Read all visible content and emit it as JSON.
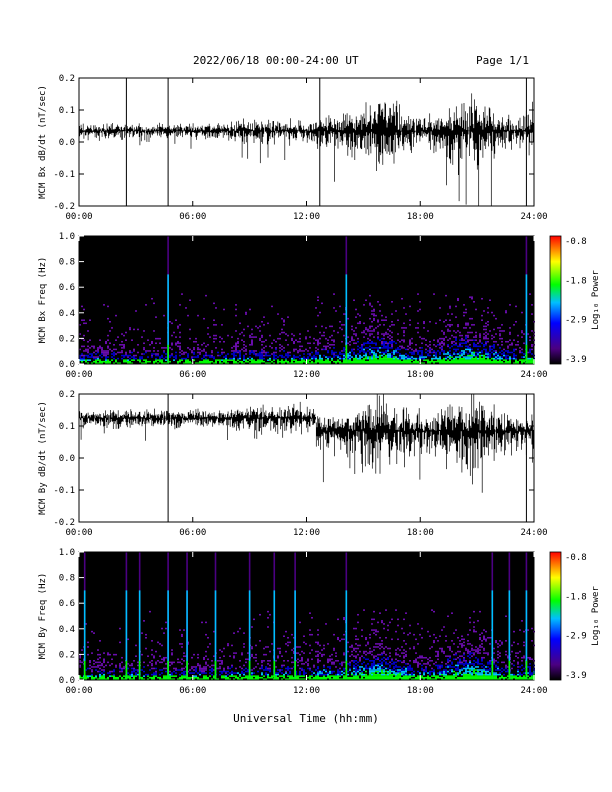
{
  "header": {
    "title": "2022/06/18  00:00-24:00 UT",
    "page": "Page 1/1"
  },
  "xaxis_label": "Universal Time (hh:mm)",
  "colorbar": {
    "label": "Log₁₀ Power",
    "ticks": [
      "-0.8",
      "-1.8",
      "-2.9",
      "-3.9"
    ]
  },
  "colors": {
    "spectrogram_background": "#000000",
    "low_power": "#4b0082",
    "mid_power": "#00bfff",
    "high_power": "#00ff00",
    "max_power": "#ff0000"
  },
  "chart_data": [
    {
      "type": "line",
      "ylabel": "MCM Bx dB/dt (nT/sec)",
      "ylim": [
        -0.2,
        0.2
      ],
      "yticks": [
        "0.2",
        "0.1",
        "0.0",
        "-0.1",
        "-0.2"
      ],
      "xticks": [
        "00:00",
        "06:00",
        "12:00",
        "18:00",
        "24:00"
      ],
      "x_range_hours": [
        0,
        24
      ],
      "series": [
        {
          "values": []
        }
      ]
    },
    {
      "type": "heatmap",
      "ylabel": "MCM Bx Freq (Hz)",
      "ylim": [
        0.0,
        1.0
      ],
      "yticks": [
        "1.0",
        "0.8",
        "0.6",
        "0.4",
        "0.2",
        "0.0"
      ],
      "xticks": [
        "00:00",
        "06:00",
        "12:00",
        "18:00",
        "24:00"
      ],
      "colorbar_range": [
        -3.9,
        -0.8
      ],
      "spike_hours": [
        4.7,
        14.1,
        23.6
      ]
    },
    {
      "type": "line",
      "ylabel": "MCM By dB/dt (nT/sec)",
      "ylim": [
        -0.2,
        0.2
      ],
      "yticks": [
        "0.2",
        "0.1",
        "0.0",
        "-0.1",
        "-0.2"
      ],
      "xticks": [
        "00:00",
        "06:00",
        "12:00",
        "18:00",
        "24:00"
      ],
      "x_range_hours": [
        0,
        24
      ],
      "series": [
        {
          "values": []
        }
      ]
    },
    {
      "type": "heatmap",
      "ylabel": "MCM By Freq (Hz)",
      "ylim": [
        0.0,
        1.0
      ],
      "yticks": [
        "1.0",
        "0.8",
        "0.6",
        "0.4",
        "0.2",
        "0.0"
      ],
      "xticks": [
        "00:00",
        "06:00",
        "12:00",
        "18:00",
        "24:00"
      ],
      "colorbar_range": [
        -3.9,
        -0.8
      ],
      "spike_hours": [
        0.3,
        2.5,
        3.2,
        4.7,
        5.7,
        7.2,
        9.0,
        10.3,
        11.4,
        14.1,
        21.8,
        22.7,
        23.6
      ]
    }
  ]
}
